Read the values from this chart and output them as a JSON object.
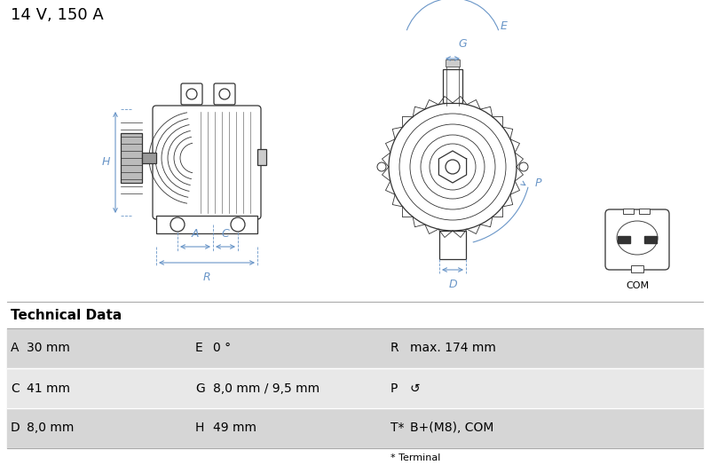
{
  "title": "14 V, 150 A",
  "title_fontsize": 13,
  "tech_data_title": "Technical Data",
  "table_rows": [
    [
      "A",
      "30 mm",
      "E",
      "0 °",
      "R",
      "max. 174 mm"
    ],
    [
      "C",
      "41 mm",
      "G",
      "8,0 mm / 9,5 mm",
      "P",
      "↺"
    ],
    [
      "D",
      "8,0 mm",
      "H",
      "49 mm",
      "T*",
      "B+(M8), COM"
    ]
  ],
  "footnote": "* Terminal",
  "bg_color": "#ffffff",
  "table_row_colors": [
    "#d6d6d6",
    "#e8e8e8",
    "#d6d6d6"
  ],
  "blue": "#6a96c8",
  "dark": "#333333",
  "mid": "#888888",
  "light": "#cccccc",
  "connector_label": "COM"
}
